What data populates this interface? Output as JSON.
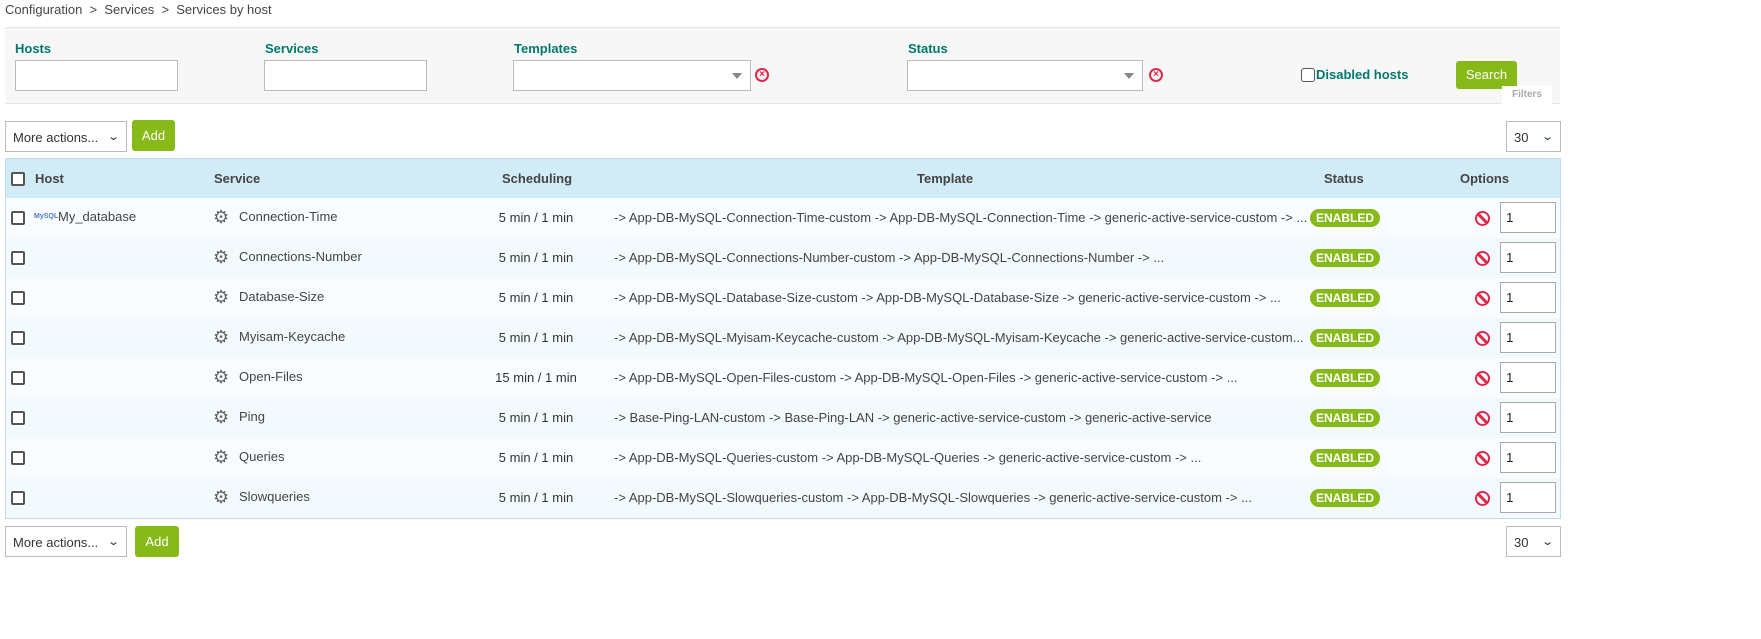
{
  "breadcrumb": "Configuration  >  Services  >  Services by host",
  "filters": {
    "hosts_label": "Hosts",
    "hosts_value": "",
    "services_label": "Services",
    "services_value": "",
    "templates_label": "Templates",
    "templates_value": "",
    "status_label": "Status",
    "status_value": "",
    "disabled_hosts_label": "Disabled hosts",
    "disabled_hosts_checked": false,
    "search_label": "Search",
    "filters_tab": "Filters"
  },
  "toolbar": {
    "more_actions": "More actions...",
    "add": "Add",
    "per_page": "30"
  },
  "table": {
    "headers": {
      "host": "Host",
      "service": "Service",
      "scheduling": "Scheduling",
      "template": "Template",
      "status": "Status",
      "options": "Options"
    },
    "rows": [
      {
        "host": "My_database",
        "service": "Connection-Time",
        "scheduling": "5 min / 1 min",
        "template": "-> App-DB-MySQL-Connection-Time-custom -> App-DB-MySQL-Connection-Time -> generic-active-service-custom -> ...",
        "status": "ENABLED",
        "option": "1"
      },
      {
        "host": "",
        "service": "Connections-Number",
        "scheduling": "5 min / 1 min",
        "template": "-> App-DB-MySQL-Connections-Number-custom -> App-DB-MySQL-Connections-Number -> ...",
        "status": "ENABLED",
        "option": "1"
      },
      {
        "host": "",
        "service": "Database-Size",
        "scheduling": "5 min / 1 min",
        "template": "-> App-DB-MySQL-Database-Size-custom -> App-DB-MySQL-Database-Size -> generic-active-service-custom -> ...",
        "status": "ENABLED",
        "option": "1"
      },
      {
        "host": "",
        "service": "Myisam-Keycache",
        "scheduling": "5 min / 1 min",
        "template": "-> App-DB-MySQL-Myisam-Keycache-custom -> App-DB-MySQL-Myisam-Keycache -> generic-active-service-custom...",
        "status": "ENABLED",
        "option": "1"
      },
      {
        "host": "",
        "service": "Open-Files",
        "scheduling": "15 min / 1 min",
        "template": "-> App-DB-MySQL-Open-Files-custom -> App-DB-MySQL-Open-Files -> generic-active-service-custom -> ...",
        "status": "ENABLED",
        "option": "1"
      },
      {
        "host": "",
        "service": "Ping",
        "scheduling": "5 min / 1 min",
        "template": "-> Base-Ping-LAN-custom -> Base-Ping-LAN -> generic-active-service-custom -> generic-active-service",
        "status": "ENABLED",
        "option": "1"
      },
      {
        "host": "",
        "service": "Queries",
        "scheduling": "5 min / 1 min",
        "template": "-> App-DB-MySQL-Queries-custom -> App-DB-MySQL-Queries -> generic-active-service-custom -> ...",
        "status": "ENABLED",
        "option": "1"
      },
      {
        "host": "",
        "service": "Slowqueries",
        "scheduling": "5 min / 1 min",
        "template": "-> App-DB-MySQL-Slowqueries-custom -> App-DB-MySQL-Slowqueries -> generic-active-service-custom -> ...",
        "status": "ENABLED",
        "option": "1"
      }
    ]
  },
  "colors": {
    "accent": "#87b919",
    "label": "#00796b",
    "header_bg": "#d1ecf7",
    "danger": "#e0294a"
  }
}
